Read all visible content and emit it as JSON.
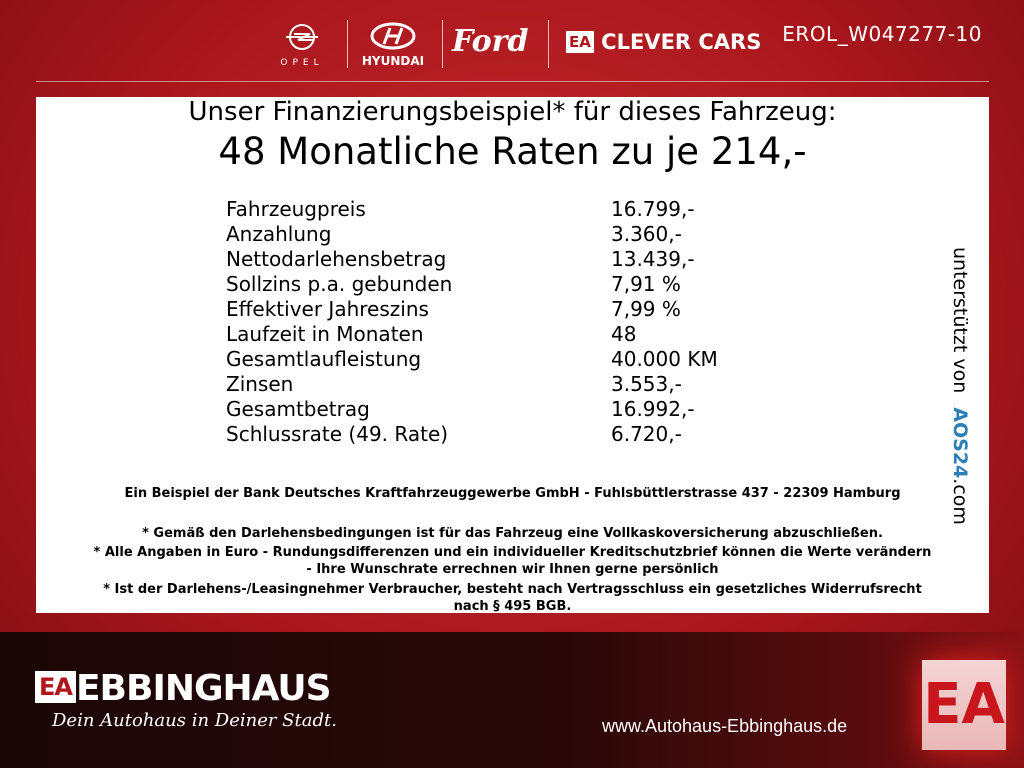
{
  "header": {
    "brands": [
      "OPEL",
      "HYUNDAI",
      "Ford",
      "CLEVER CARS"
    ],
    "clever_cars_badge": "EA",
    "reference": "EROL_W047277-10"
  },
  "offer": {
    "title": "Unser Finanzierungsbeispiel* für dieses Fahrzeug:",
    "headline": "48 Monatliche Raten zu je 214,-",
    "rows": [
      {
        "label": "Fahrzeugpreis",
        "value": "16.799,-"
      },
      {
        "label": "Anzahlung",
        "value": "3.360,-"
      },
      {
        "label": "Nettodarlehensbetrag",
        "value": "13.439,-"
      },
      {
        "label": "Sollzins p.a. gebunden",
        "value": "7,91 %"
      },
      {
        "label": "Effektiver Jahreszins",
        "value": "7,99 %"
      },
      {
        "label": "Laufzeit in Monaten",
        "value": "48"
      },
      {
        "label": "Gesamtlaufleistung",
        "value": "40.000 KM"
      },
      {
        "label": "Zinsen",
        "value": "3.553,-"
      },
      {
        "label": "Gesamtbetrag",
        "value": "16.992,-"
      },
      {
        "label": "Schlussrate (49. Rate)",
        "value": "6.720,-"
      }
    ],
    "bank": "Ein Beispiel der Bank Deutsches Kraftfahrzeuggewerbe GmbH - Fuhlsbüttlerstrasse 437 - 22309 Hamburg",
    "notes": [
      "* Gemäß den Darlehensbedingungen ist für das Fahrzeug eine Vollkaskoversicherung abzuschließen.",
      "* Alle Angaben in Euro - Rundungsdifferenzen und ein individueller Kreditschutzbrief können die Werte verändern",
      "- Ihre Wunschrate errechnen wir Ihnen gerne persönlich",
      "* Ist der Darlehens-/Leasingnehmer Verbraucher, besteht nach Vertragsschluss ein gesetzliches Widerrufsrecht",
      "nach § 495 BGB."
    ],
    "supported_by": "unterstützt von",
    "supporter": "AOS24",
    "supporter_tld": ".com"
  },
  "footer": {
    "badge": "EA",
    "dealer": "EBBINGHAUS",
    "slogan": "Dein Autohaus in Deiner Stadt.",
    "website": "www.Autohaus-Ebbinghaus.de"
  }
}
